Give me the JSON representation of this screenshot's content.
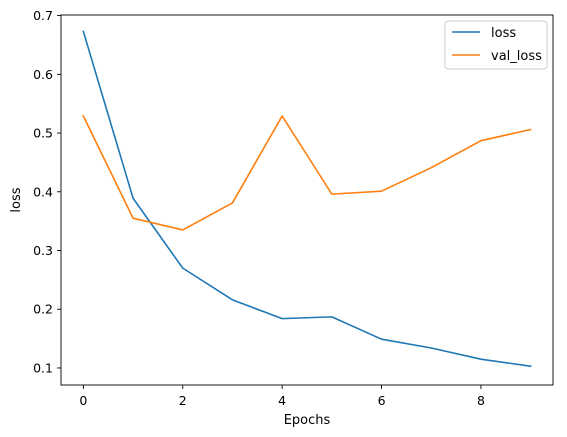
{
  "chart_data": {
    "type": "line",
    "title": "",
    "xlabel": "Epochs",
    "ylabel": "loss",
    "x": [
      0,
      1,
      2,
      3,
      4,
      5,
      6,
      7,
      8,
      9
    ],
    "xlim": [
      -0.45,
      9.45
    ],
    "ylim": [
      0.071,
      0.701
    ],
    "xticks": [
      0,
      2,
      4,
      6,
      8
    ],
    "xtick_labels": [
      "0",
      "2",
      "4",
      "6",
      "8"
    ],
    "yticks": [
      0.1,
      0.2,
      0.3,
      0.4,
      0.5,
      0.6,
      0.7
    ],
    "ytick_labels": [
      "0.1",
      "0.2",
      "0.3",
      "0.4",
      "0.5",
      "0.6",
      "0.7"
    ],
    "grid": false,
    "legend_position": "top-right",
    "series": [
      {
        "name": "loss",
        "color": "#1f77b4",
        "values": [
          0.673,
          0.389,
          0.27,
          0.216,
          0.184,
          0.187,
          0.149,
          0.134,
          0.115,
          0.103
        ]
      },
      {
        "name": "val_loss",
        "color": "#ff7f0e",
        "values": [
          0.529,
          0.355,
          0.335,
          0.381,
          0.529,
          0.396,
          0.401,
          0.441,
          0.487,
          0.506
        ]
      }
    ]
  }
}
